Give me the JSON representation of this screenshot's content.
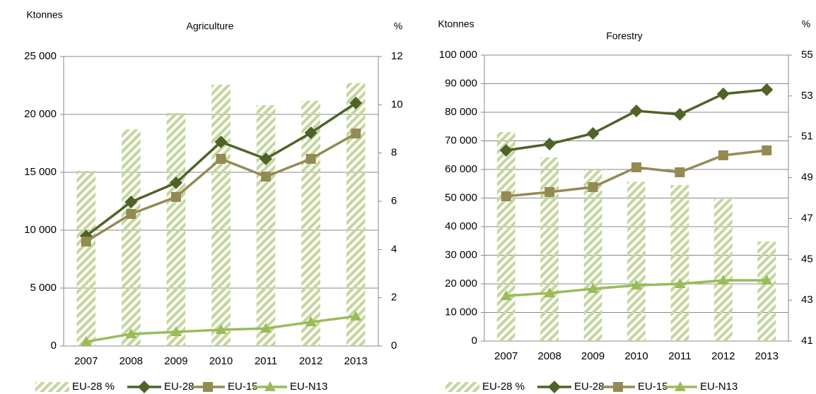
{
  "chart_data": [
    {
      "type": "bar-line",
      "title": "Agriculture",
      "ylabel": "Ktonnes",
      "y2label": "%",
      "categories": [
        "2007",
        "2008",
        "2009",
        "2010",
        "2011",
        "2012",
        "2013"
      ],
      "ylim": [
        0,
        25000
      ],
      "yticks": [
        0,
        {
          "value": 5000,
          "label": "5 000"
        },
        {
          "value": 10000,
          "label": "10 000"
        },
        {
          "value": 15000,
          "label": "15 000"
        },
        {
          "value": 20000,
          "label": "20 000"
        },
        {
          "value": 25000,
          "label": "25 000"
        }
      ],
      "y2lim": [
        0,
        12
      ],
      "y2ticks": [
        0,
        2,
        4,
        6,
        8,
        10,
        12
      ],
      "grid": true,
      "series": [
        {
          "name": "EU-28 %",
          "kind": "bar",
          "axis": "y2",
          "color": "#c3d69b",
          "values": [
            7.26,
            8.98,
            9.66,
            10.83,
            9.98,
            10.16,
            10.9
          ]
        },
        {
          "name": "EU-28",
          "kind": "line",
          "marker": "diamond",
          "color": "#4f6228",
          "values": [
            9500,
            12440,
            14090,
            17620,
            16160,
            18410,
            20980
          ]
        },
        {
          "name": "EU-15",
          "kind": "line",
          "marker": "square",
          "color": "#948a54",
          "values": [
            9020,
            11400,
            12870,
            16160,
            14630,
            16160,
            18350
          ]
        },
        {
          "name": "EU-N13",
          "kind": "line",
          "marker": "triangle",
          "color": "#9bbb59",
          "values": [
            370,
            1040,
            1220,
            1400,
            1520,
            2070,
            2560
          ]
        }
      ]
    },
    {
      "type": "bar-line",
      "title": "Forestry",
      "ylabel": "Ktonnes",
      "y2label": "%",
      "categories": [
        "2007",
        "2008",
        "2009",
        "2010",
        "2011",
        "2012",
        "2013"
      ],
      "ylim": [
        0,
        100000
      ],
      "yticks": [
        0,
        {
          "value": 10000,
          "label": "10 000"
        },
        {
          "value": 20000,
          "label": "20 000"
        },
        {
          "value": 30000,
          "label": "30 000"
        },
        {
          "value": 40000,
          "label": "40 000"
        },
        {
          "value": 50000,
          "label": "50 000"
        },
        {
          "value": 60000,
          "label": "60 000"
        },
        {
          "value": 70000,
          "label": "70 000"
        },
        {
          "value": 80000,
          "label": "80 000"
        },
        {
          "value": 90000,
          "label": "90 000"
        },
        {
          "value": 100000,
          "label": "100 000"
        }
      ],
      "y2lim": [
        41,
        55
      ],
      "y2ticks": [
        41,
        43,
        45,
        47,
        49,
        51,
        53,
        55
      ],
      "grid": true,
      "series": [
        {
          "name": "EU-28 %",
          "kind": "bar",
          "axis": "y2",
          "color": "#c3d69b",
          "values": [
            51.23,
            49.99,
            49.4,
            48.8,
            48.64,
            47.95,
            45.87
          ]
        },
        {
          "name": "EU-28",
          "kind": "line",
          "marker": "diamond",
          "color": "#4f6228",
          "values": [
            66670,
            68890,
            72590,
            80490,
            79260,
            86420,
            87900
          ]
        },
        {
          "name": "EU-15",
          "kind": "line",
          "marker": "square",
          "color": "#948a54",
          "values": [
            50620,
            52100,
            53830,
            60740,
            59010,
            64940,
            66670
          ]
        },
        {
          "name": "EU-N13",
          "kind": "line",
          "marker": "triangle",
          "color": "#9bbb59",
          "values": [
            15800,
            16790,
            18270,
            19500,
            20000,
            21230,
            21230
          ]
        }
      ]
    }
  ]
}
